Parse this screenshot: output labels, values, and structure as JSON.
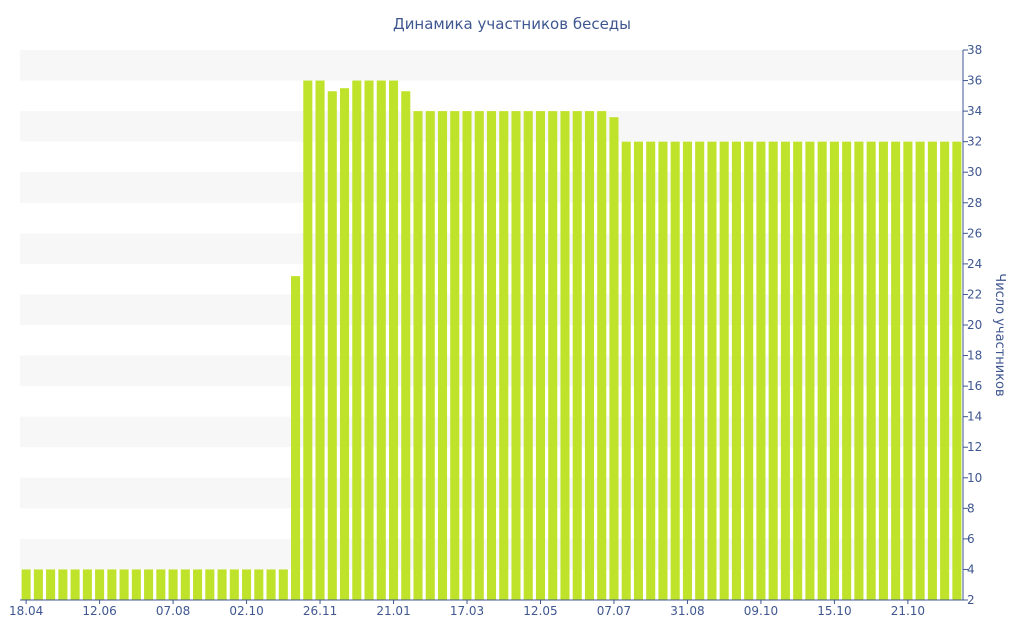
{
  "chart_data": {
    "type": "bar",
    "title": "Динамика участников беседы",
    "ylabel": "Число участников",
    "xlabel": "",
    "ylim": [
      2,
      38
    ],
    "yticks": [
      2,
      4,
      6,
      8,
      10,
      12,
      14,
      16,
      18,
      20,
      22,
      24,
      26,
      28,
      30,
      32,
      34,
      36,
      38
    ],
    "y_axis_position": "right",
    "grid": "alternating horizontal bands",
    "x_tick_labels": [
      {
        "index": 0,
        "label": "18.04"
      },
      {
        "index": 6,
        "label": "12.06"
      },
      {
        "index": 12,
        "label": "07.08"
      },
      {
        "index": 18,
        "label": "02.10"
      },
      {
        "index": 24,
        "label": "26.11"
      },
      {
        "index": 30,
        "label": "21.01"
      },
      {
        "index": 36,
        "label": "17.03"
      },
      {
        "index": 42,
        "label": "12.05"
      },
      {
        "index": 48,
        "label": "07.07"
      },
      {
        "index": 54,
        "label": "31.08"
      },
      {
        "index": 60,
        "label": "09.10"
      },
      {
        "index": 66,
        "label": "15.10"
      },
      {
        "index": 72,
        "label": "21.10"
      }
    ],
    "series": [
      {
        "color": "#bfe22a",
        "values": [
          4,
          4,
          4,
          4,
          4,
          4,
          4,
          4,
          4,
          4,
          4,
          4,
          4,
          4,
          4,
          4,
          4,
          4,
          4,
          4,
          4,
          4,
          23.2,
          36,
          36,
          35.3,
          35.5,
          36,
          36,
          36,
          36,
          35.3,
          34,
          34,
          34,
          34,
          34,
          34,
          34,
          34,
          34,
          34,
          34,
          34,
          34,
          34,
          34,
          34,
          33.6,
          32,
          32,
          32,
          32,
          32,
          32,
          32,
          32,
          32,
          32,
          32,
          32,
          32,
          32,
          32,
          32,
          32,
          32,
          32,
          32,
          32,
          32,
          32,
          32,
          32,
          32,
          32,
          32
        ]
      }
    ],
    "colors": {
      "bar": "#bfe22a",
      "band": "#f7f7f7",
      "text": "#3f5790",
      "axis": "#3f5790"
    }
  }
}
